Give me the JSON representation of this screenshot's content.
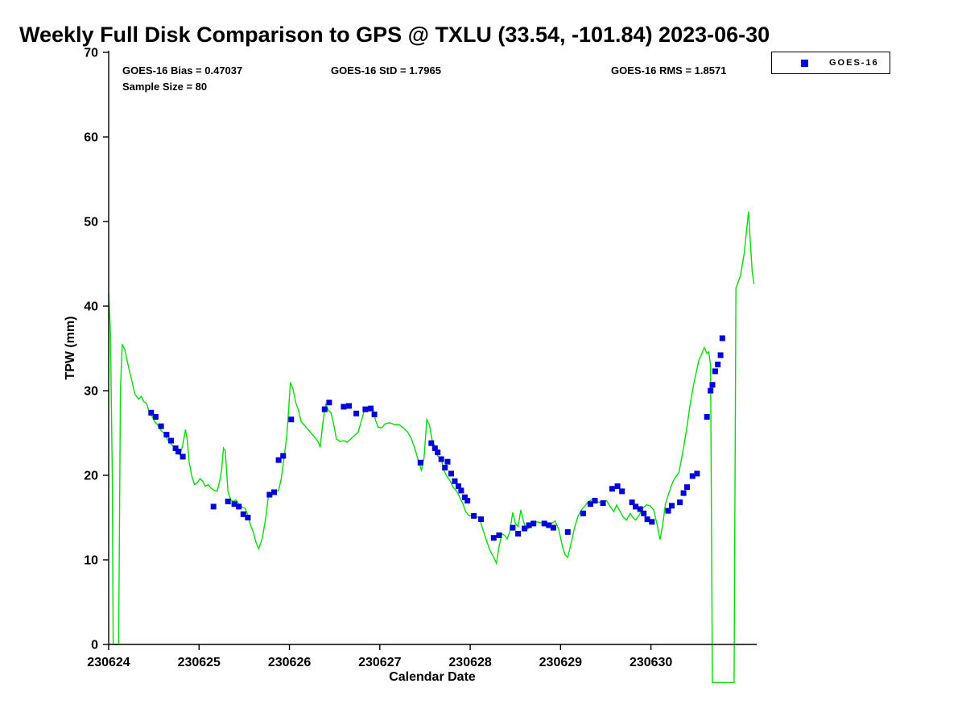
{
  "title": "Weekly Full Disk Comparison to GPS @ TXLU (33.54, -101.84) 2023-06-30",
  "annotations": {
    "bias": "GOES-16 Bias = 0.47037",
    "std": "GOES-16 StD = 1.7965",
    "rms": "GOES-16 RMS = 1.8571",
    "sample_size": "Sample Size = 80"
  },
  "legend": {
    "position": "top-right",
    "entries": [
      {
        "label": "GOES-16",
        "marker": "square",
        "color": "#0000dd"
      }
    ]
  },
  "colors": {
    "gps_line": "#00e000",
    "goes16_marker": "#0000dd",
    "axis": "#000000",
    "background": "#ffffff"
  },
  "chart_data": {
    "type": "line",
    "title": "Weekly Full Disk Comparison to GPS @ TXLU (33.54, -101.84) 2023-06-30",
    "xlabel": "Calendar Date",
    "ylabel": "TPW (mm)",
    "grid": false,
    "x_base_date": 230624,
    "xlim": [
      0,
      7.17
    ],
    "ylim": [
      0,
      70
    ],
    "y_ticks": [
      0,
      10,
      20,
      30,
      40,
      50,
      60,
      70
    ],
    "x_ticks": [
      {
        "pos": 0,
        "label": "230624"
      },
      {
        "pos": 1,
        "label": "230625"
      },
      {
        "pos": 2,
        "label": "230626"
      },
      {
        "pos": 3,
        "label": "230627"
      },
      {
        "pos": 4,
        "label": "230628"
      },
      {
        "pos": 5,
        "label": "230629"
      },
      {
        "pos": 6,
        "label": "230630"
      }
    ],
    "series": [
      {
        "name": "GPS",
        "type": "line",
        "color": "#00e000",
        "points": [
          [
            0.0,
            41.5
          ],
          [
            0.02,
            37.0
          ],
          [
            0.04,
            20.0
          ],
          [
            0.05,
            0.0
          ],
          [
            0.11,
            0.0
          ],
          [
            0.13,
            30.0
          ],
          [
            0.15,
            35.5
          ],
          [
            0.18,
            34.8
          ],
          [
            0.22,
            32.8
          ],
          [
            0.26,
            31.0
          ],
          [
            0.29,
            29.6
          ],
          [
            0.33,
            29.0
          ],
          [
            0.36,
            29.3
          ],
          [
            0.39,
            28.7
          ],
          [
            0.42,
            28.5
          ],
          [
            0.45,
            27.4
          ],
          [
            0.48,
            27.0
          ],
          [
            0.51,
            26.3
          ],
          [
            0.54,
            26.0
          ],
          [
            0.58,
            25.3
          ],
          [
            0.61,
            25.0
          ],
          [
            0.64,
            24.4
          ],
          [
            0.67,
            23.9
          ],
          [
            0.7,
            23.6
          ],
          [
            0.73,
            23.2
          ],
          [
            0.76,
            22.6
          ],
          [
            0.79,
            22.4
          ],
          [
            0.82,
            23.6
          ],
          [
            0.85,
            25.4
          ],
          [
            0.87,
            24.2
          ],
          [
            0.89,
            21.6
          ],
          [
            0.92,
            19.9
          ],
          [
            0.95,
            18.9
          ],
          [
            0.98,
            19.1
          ],
          [
            1.01,
            19.6
          ],
          [
            1.04,
            19.3
          ],
          [
            1.07,
            18.7
          ],
          [
            1.1,
            18.9
          ],
          [
            1.13,
            18.5
          ],
          [
            1.17,
            18.2
          ],
          [
            1.2,
            18.1
          ],
          [
            1.23,
            19.4
          ],
          [
            1.25,
            20.6
          ],
          [
            1.27,
            23.2
          ],
          [
            1.29,
            22.9
          ],
          [
            1.32,
            18.1
          ],
          [
            1.35,
            17.1
          ],
          [
            1.38,
            16.9
          ],
          [
            1.41,
            17.1
          ],
          [
            1.44,
            16.6
          ],
          [
            1.48,
            16.2
          ],
          [
            1.51,
            16.1
          ],
          [
            1.54,
            15.3
          ],
          [
            1.57,
            14.1
          ],
          [
            1.6,
            13.3
          ],
          [
            1.63,
            12.1
          ],
          [
            1.66,
            11.3
          ],
          [
            1.7,
            12.6
          ],
          [
            1.74,
            15.1
          ],
          [
            1.77,
            17.8
          ],
          [
            1.81,
            17.9
          ],
          [
            1.85,
            18.1
          ],
          [
            1.88,
            18.2
          ],
          [
            1.91,
            19.6
          ],
          [
            1.94,
            22.0
          ],
          [
            1.97,
            24.6
          ],
          [
            1.99,
            27.5
          ],
          [
            2.01,
            31.0
          ],
          [
            2.04,
            30.2
          ],
          [
            2.07,
            28.6
          ],
          [
            2.1,
            27.7
          ],
          [
            2.13,
            26.3
          ],
          [
            2.16,
            26.0
          ],
          [
            2.2,
            25.5
          ],
          [
            2.24,
            25.0
          ],
          [
            2.28,
            24.5
          ],
          [
            2.32,
            23.9
          ],
          [
            2.34,
            23.3
          ],
          [
            2.37,
            26.2
          ],
          [
            2.4,
            28.4
          ],
          [
            2.43,
            27.7
          ],
          [
            2.46,
            27.4
          ],
          [
            2.49,
            26.0
          ],
          [
            2.52,
            24.3
          ],
          [
            2.56,
            24.0
          ],
          [
            2.6,
            24.1
          ],
          [
            2.64,
            23.9
          ],
          [
            2.68,
            24.3
          ],
          [
            2.72,
            24.7
          ],
          [
            2.76,
            25.1
          ],
          [
            2.8,
            26.6
          ],
          [
            2.83,
            27.7
          ],
          [
            2.86,
            27.9
          ],
          [
            2.89,
            27.6
          ],
          [
            2.92,
            28.1
          ],
          [
            2.95,
            26.6
          ],
          [
            2.98,
            25.7
          ],
          [
            3.02,
            25.6
          ],
          [
            3.06,
            26.1
          ],
          [
            3.11,
            26.2
          ],
          [
            3.16,
            26.0
          ],
          [
            3.21,
            26.0
          ],
          [
            3.26,
            25.6
          ],
          [
            3.31,
            25.1
          ],
          [
            3.35,
            24.3
          ],
          [
            3.39,
            23.1
          ],
          [
            3.43,
            21.6
          ],
          [
            3.46,
            20.6
          ],
          [
            3.49,
            22.1
          ],
          [
            3.52,
            26.6
          ],
          [
            3.55,
            25.9
          ],
          [
            3.58,
            24.1
          ],
          [
            3.61,
            23.4
          ],
          [
            3.64,
            22.3
          ],
          [
            3.68,
            21.9
          ],
          [
            3.71,
            20.6
          ],
          [
            3.74,
            19.9
          ],
          [
            3.78,
            19.3
          ],
          [
            3.81,
            18.6
          ],
          [
            3.85,
            18.1
          ],
          [
            3.88,
            17.5
          ],
          [
            3.92,
            16.6
          ],
          [
            3.95,
            15.7
          ],
          [
            3.98,
            15.3
          ],
          [
            4.02,
            15.2
          ],
          [
            4.06,
            15.1
          ],
          [
            4.1,
            15.0
          ],
          [
            4.14,
            13.6
          ],
          [
            4.18,
            12.3
          ],
          [
            4.22,
            11.1
          ],
          [
            4.26,
            10.3
          ],
          [
            4.29,
            9.6
          ],
          [
            4.32,
            11.6
          ],
          [
            4.35,
            13.1
          ],
          [
            4.38,
            12.9
          ],
          [
            4.41,
            12.5
          ],
          [
            4.44,
            13.4
          ],
          [
            4.47,
            15.6
          ],
          [
            4.5,
            14.3
          ],
          [
            4.53,
            13.9
          ],
          [
            4.56,
            15.9
          ],
          [
            4.59,
            14.6
          ],
          [
            4.62,
            13.5
          ],
          [
            4.66,
            13.9
          ],
          [
            4.7,
            14.3
          ],
          [
            4.74,
            14.5
          ],
          [
            4.78,
            14.4
          ],
          [
            4.82,
            14.3
          ],
          [
            4.86,
            14.1
          ],
          [
            4.9,
            14.3
          ],
          [
            4.94,
            14.6
          ],
          [
            4.98,
            13.6
          ],
          [
            5.02,
            11.6
          ],
          [
            5.05,
            10.6
          ],
          [
            5.08,
            10.3
          ],
          [
            5.12,
            12.1
          ],
          [
            5.15,
            13.6
          ],
          [
            5.19,
            15.1
          ],
          [
            5.23,
            15.9
          ],
          [
            5.27,
            16.4
          ],
          [
            5.31,
            16.9
          ],
          [
            5.35,
            17.1
          ],
          [
            5.39,
            16.9
          ],
          [
            5.43,
            16.8
          ],
          [
            5.47,
            16.9
          ],
          [
            5.51,
            17.0
          ],
          [
            5.55,
            16.3
          ],
          [
            5.59,
            15.7
          ],
          [
            5.62,
            16.5
          ],
          [
            5.65,
            15.9
          ],
          [
            5.69,
            15.1
          ],
          [
            5.73,
            14.7
          ],
          [
            5.77,
            15.5
          ],
          [
            5.8,
            15.0
          ],
          [
            5.83,
            14.7
          ],
          [
            5.87,
            15.3
          ],
          [
            5.91,
            16.1
          ],
          [
            5.95,
            16.5
          ],
          [
            5.99,
            16.4
          ],
          [
            6.03,
            15.9
          ],
          [
            6.07,
            14.1
          ],
          [
            6.1,
            12.4
          ],
          [
            6.13,
            14.1
          ],
          [
            6.16,
            16.6
          ],
          [
            6.19,
            17.6
          ],
          [
            6.22,
            18.6
          ],
          [
            6.25,
            19.4
          ],
          [
            6.28,
            19.9
          ],
          [
            6.31,
            20.3
          ],
          [
            6.35,
            22.6
          ],
          [
            6.39,
            25.1
          ],
          [
            6.43,
            28.1
          ],
          [
            6.47,
            30.6
          ],
          [
            6.5,
            32.1
          ],
          [
            6.53,
            33.6
          ],
          [
            6.56,
            34.3
          ],
          [
            6.59,
            35.1
          ],
          [
            6.62,
            34.4
          ],
          [
            6.64,
            34.6
          ],
          [
            6.66,
            33.0
          ],
          [
            6.68,
            -4.5
          ],
          [
            6.92,
            -4.5
          ],
          [
            6.94,
            42.1
          ],
          [
            6.99,
            43.6
          ],
          [
            7.03,
            46.1
          ],
          [
            7.06,
            49.1
          ],
          [
            7.08,
            51.2
          ],
          [
            7.1,
            47.6
          ],
          [
            7.12,
            44.1
          ],
          [
            7.14,
            42.6
          ]
        ]
      },
      {
        "name": "GOES-16",
        "type": "scatter",
        "marker": "square",
        "color": "#0000dd",
        "points": [
          [
            0.47,
            27.4
          ],
          [
            0.52,
            26.9
          ],
          [
            0.58,
            25.8
          ],
          [
            0.64,
            24.8
          ],
          [
            0.69,
            24.1
          ],
          [
            0.74,
            23.2
          ],
          [
            0.77,
            22.8
          ],
          [
            0.82,
            22.2
          ],
          [
            1.16,
            16.3
          ],
          [
            1.32,
            16.9
          ],
          [
            1.39,
            16.6
          ],
          [
            1.44,
            16.3
          ],
          [
            1.49,
            15.4
          ],
          [
            1.54,
            15.0
          ],
          [
            1.78,
            17.7
          ],
          [
            1.83,
            18.0
          ],
          [
            1.88,
            21.8
          ],
          [
            1.93,
            22.3
          ],
          [
            2.02,
            26.6
          ],
          [
            2.39,
            27.8
          ],
          [
            2.44,
            28.6
          ],
          [
            2.6,
            28.1
          ],
          [
            2.66,
            28.2
          ],
          [
            2.74,
            27.3
          ],
          [
            2.84,
            27.8
          ],
          [
            2.9,
            27.9
          ],
          [
            2.94,
            27.2
          ],
          [
            3.45,
            21.5
          ],
          [
            3.57,
            23.8
          ],
          [
            3.61,
            23.2
          ],
          [
            3.64,
            22.7
          ],
          [
            3.68,
            21.9
          ],
          [
            3.72,
            20.9
          ],
          [
            3.75,
            21.6
          ],
          [
            3.79,
            20.2
          ],
          [
            3.83,
            19.3
          ],
          [
            3.87,
            18.7
          ],
          [
            3.9,
            18.2
          ],
          [
            3.94,
            17.4
          ],
          [
            3.97,
            17.0
          ],
          [
            4.04,
            15.2
          ],
          [
            4.12,
            14.8
          ],
          [
            4.26,
            12.6
          ],
          [
            4.32,
            12.9
          ],
          [
            4.47,
            13.8
          ],
          [
            4.53,
            13.1
          ],
          [
            4.6,
            13.7
          ],
          [
            4.65,
            14.1
          ],
          [
            4.7,
            14.3
          ],
          [
            4.82,
            14.3
          ],
          [
            4.87,
            14.1
          ],
          [
            4.92,
            13.8
          ],
          [
            5.08,
            13.3
          ],
          [
            5.25,
            15.5
          ],
          [
            5.33,
            16.6
          ],
          [
            5.38,
            17.0
          ],
          [
            5.47,
            16.7
          ],
          [
            5.57,
            18.4
          ],
          [
            5.63,
            18.7
          ],
          [
            5.68,
            18.1
          ],
          [
            5.79,
            16.8
          ],
          [
            5.83,
            16.3
          ],
          [
            5.88,
            16.0
          ],
          [
            5.92,
            15.5
          ],
          [
            5.96,
            14.8
          ],
          [
            6.01,
            14.5
          ],
          [
            6.19,
            15.8
          ],
          [
            6.23,
            16.4
          ],
          [
            6.32,
            16.8
          ],
          [
            6.36,
            17.9
          ],
          [
            6.4,
            18.6
          ],
          [
            6.46,
            19.9
          ],
          [
            6.51,
            20.2
          ],
          [
            6.62,
            26.9
          ],
          [
            6.66,
            30.0
          ],
          [
            6.68,
            30.7
          ],
          [
            6.71,
            32.3
          ],
          [
            6.74,
            33.1
          ],
          [
            6.77,
            34.2
          ],
          [
            6.79,
            36.2
          ]
        ]
      }
    ]
  }
}
